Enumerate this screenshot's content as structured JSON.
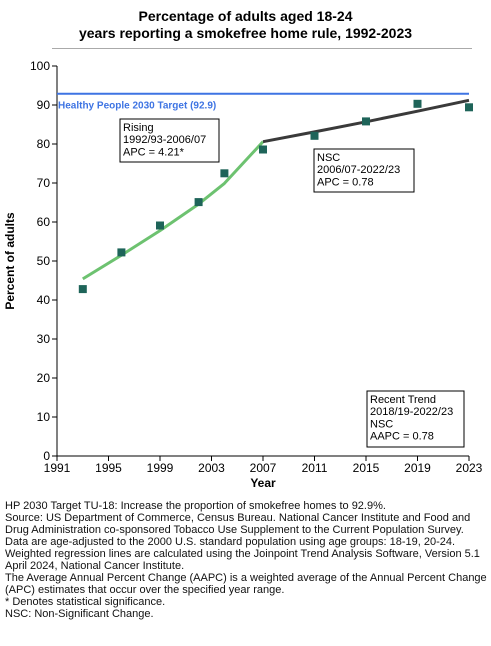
{
  "chart_data": {
    "type": "line",
    "title_lines": [
      "Percentage of adults aged 18-24",
      "years reporting a smokefree home rule, 1992-2023"
    ],
    "xlabel": "Year",
    "ylabel": "Percent of adults",
    "xlim": [
      1991,
      2023
    ],
    "ylim": [
      0,
      100
    ],
    "x_ticks": [
      1991,
      1995,
      1999,
      2003,
      2007,
      2011,
      2015,
      2019,
      2023
    ],
    "y_ticks": [
      0,
      10,
      20,
      30,
      40,
      50,
      60,
      70,
      80,
      90,
      100
    ],
    "observed": {
      "x": [
        1993,
        1996,
        1999,
        2002,
        2004,
        2007,
        2011,
        2015,
        2019,
        2023
      ],
      "y": [
        42.8,
        52.2,
        59.1,
        65.1,
        72.5,
        78.6,
        82.1,
        85.8,
        90.3,
        89.4
      ],
      "color": "#1e6459"
    },
    "trends": [
      {
        "x": [
          1993,
          1996,
          1999,
          2002,
          2004,
          2007
        ],
        "y": [
          45.4,
          51.5,
          57.8,
          64.6,
          69.9,
          80.6
        ],
        "color": "#6dc270"
      },
      {
        "x": [
          2007,
          2011,
          2015,
          2019,
          2023
        ],
        "y": [
          80.6,
          83.1,
          85.7,
          88.4,
          91.2
        ],
        "color": "#3a3a3a"
      }
    ],
    "target": {
      "value": 92.9,
      "label": "Healthy People 2030 Target (92.9)",
      "color": "#3e74e3"
    },
    "annotations": [
      {
        "id": "rising",
        "lines": [
          "Rising",
          "1992/93-2006/07",
          "APC =  4.21*"
        ]
      },
      {
        "id": "nsc",
        "lines": [
          "NSC",
          "2006/07-2022/23",
          "APC =  0.78"
        ]
      },
      {
        "id": "recent",
        "lines": [
          "Recent Trend",
          "2018/19-2022/23",
          "NSC",
          "AAPC =  0.78"
        ]
      }
    ]
  },
  "footnotes": [
    "HP 2030 Target TU-18: Increase the proportion of smokefree homes to 92.9%.",
    "Source: US Department of Commerce, Census Bureau. National Cancer Institute and Food and Drug Administration co-sponsored Tobacco Use Supplement to the Current Population Survey.",
    "Data are age-adjusted to the 2000 U.S. standard population using age groups: 18-19, 20-24.",
    "Weighted regression lines are calculated using the Joinpoint Trend Analysis Software, Version 5.1 April 2024, National Cancer Institute.",
    "The Average Annual Percent Change (AAPC) is a weighted average of the Annual Percent Change (APC) estimates that occur over the specified year range.",
    "* Denotes statistical significance.",
    "NSC: Non-Significant Change."
  ]
}
